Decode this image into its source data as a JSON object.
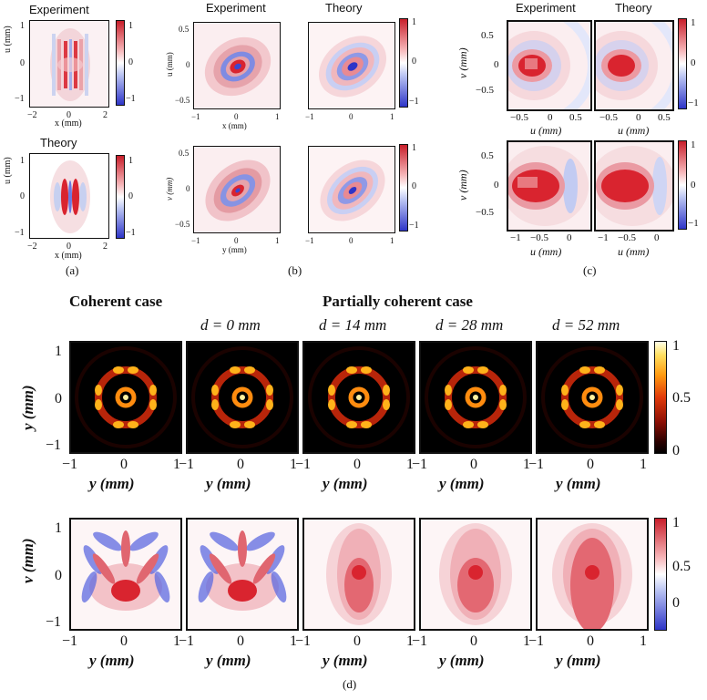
{
  "panel_a": {
    "top_title": "Experiment",
    "bottom_title": "Theory",
    "ylabel": "u (mm)",
    "xlabel": "x (mm)",
    "yticks": [
      "1",
      "0",
      "−1"
    ],
    "xticks": [
      "−2",
      "0",
      "2"
    ],
    "cbar_ticks": [
      "1",
      "0",
      "−1"
    ],
    "caption": "(a)"
  },
  "panel_b": {
    "titles": [
      "Experiment",
      "Theory"
    ],
    "top_ylabel": "u (mm)",
    "top_xlabel": "x (mm)",
    "bottom_ylabel": "v (mm)",
    "bottom_xlabel": "y (mm)",
    "yticks": [
      "0.5",
      "0",
      "−0.5"
    ],
    "xticks": [
      "−1",
      "0",
      "1"
    ],
    "cbar_ticks": [
      "1",
      "0",
      "−1"
    ],
    "caption": "(b)"
  },
  "panel_c": {
    "titles": [
      "Experiment",
      "Theory"
    ],
    "ylabel": "v (mm)",
    "xlabel": "u (mm)",
    "top_yticks": [
      "0.5",
      "0",
      "−0.5"
    ],
    "bottom_yticks": [
      "0.5",
      "0",
      "−0.5"
    ],
    "top_xticks": [
      "−0.5",
      "0",
      "0.5"
    ],
    "bottom_xticks": [
      "−1",
      "−0.5",
      "0"
    ],
    "cbar_ticks": [
      "1",
      "0",
      "−1"
    ],
    "caption": "(c)"
  },
  "panel_d": {
    "heading_coherent": "Coherent case",
    "heading_partial": "Partially coherent case",
    "distances": [
      "d = 0 mm",
      "d = 14 mm",
      "d = 28 mm",
      "d = 52 mm"
    ],
    "top_ylabel": "y (mm)",
    "bottom_ylabel": "v (mm)",
    "xlabel": "y (mm)",
    "yticks": [
      "1",
      "0",
      "−1"
    ],
    "xticks": [
      "−1",
      "0",
      "1"
    ],
    "top_cbar_ticks": [
      "1",
      "0.5",
      "0"
    ],
    "bottom_cbar_ticks": [
      "1",
      "0.5",
      "0"
    ],
    "caption": "(d)"
  },
  "colors": {
    "red": "#d9242f",
    "blue": "#2e35c8",
    "hot": "#ff9a10",
    "black": "#000000"
  }
}
